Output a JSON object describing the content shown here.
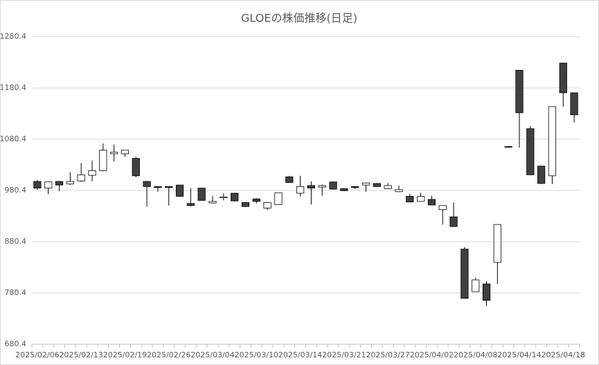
{
  "chart_data": {
    "type": "candlestick",
    "title": "GLOEの株価推移(日足)",
    "categories": [
      "2025/02/06",
      null,
      null,
      null,
      "2025/02/13",
      null,
      null,
      null,
      "2025/02/19",
      null,
      null,
      null,
      "2025/02/26",
      null,
      null,
      null,
      "2025/03/04",
      null,
      null,
      null,
      "2025/03/10",
      null,
      null,
      null,
      "2025/03/14",
      null,
      null,
      null,
      "2025/03/21",
      null,
      null,
      null,
      "2025/03/27",
      null,
      null,
      null,
      "2025/04/02",
      null,
      null,
      null,
      "2025/04/08",
      null,
      null,
      null,
      "2025/04/14",
      null,
      null,
      null,
      "2025/04/18",
      null
    ],
    "open": [
      998,
      985,
      998,
      993,
      999,
      1010,
      1019,
      1052,
      1052,
      1043,
      998,
      988,
      988,
      991,
      955,
      985,
      956,
      966,
      975,
      957,
      964,
      946,
      953,
      1007,
      975,
      990,
      987,
      997,
      984,
      988,
      991,
      994,
      984,
      978,
      969,
      959,
      963,
      943,
      929,
      866,
      783,
      798,
      840,
      1066,
      1215,
      1101,
      1028,
      1009,
      1229,
      1171
    ],
    "high": [
      1001,
      998,
      999,
      1016,
      1034,
      1039,
      1072,
      1070,
      1059,
      1046,
      999,
      989,
      988,
      991,
      985,
      985,
      970,
      975,
      976,
      957,
      965,
      958,
      976,
      1009,
      1009,
      998,
      992,
      998,
      985,
      989,
      996,
      995,
      995,
      990,
      974,
      976,
      970,
      951,
      957,
      870,
      810,
      803,
      914,
      1066,
      1215,
      1106,
      1028,
      1144,
      1229,
      1171
    ],
    "low": [
      982,
      973,
      979,
      991,
      997,
      998,
      1018,
      1037,
      1046,
      1006,
      949,
      978,
      951,
      968,
      949,
      961,
      955,
      961,
      959,
      948,
      955,
      942,
      953,
      995,
      969,
      953,
      970,
      982,
      979,
      983,
      978,
      988,
      983,
      977,
      957,
      958,
      952,
      914,
      909,
      769,
      783,
      755,
      798,
      1065,
      1064,
      1011,
      993,
      993,
      1144,
      1113
    ],
    "close": [
      985,
      997,
      991,
      998,
      1011,
      1019,
      1059,
      1055,
      1059,
      1009,
      988,
      986,
      986,
      969,
      951,
      961,
      959,
      968,
      960,
      949,
      959,
      957,
      976,
      996,
      988,
      985,
      990,
      983,
      980,
      986,
      995,
      988,
      990,
      982,
      958,
      969,
      952,
      951,
      910,
      770,
      806,
      766,
      914,
      1065,
      1132,
      1011,
      994,
      1144,
      1171,
      1128
    ],
    "up_color": "#ffffff",
    "down_color": "#404040",
    "edge_color": "#000000",
    "ylim": [
      680.4,
      1280.4
    ],
    "yticks": [
      680.4,
      780.4,
      880.4,
      980.4,
      1080.4,
      1180.4,
      1280.4
    ],
    "grid": true
  }
}
